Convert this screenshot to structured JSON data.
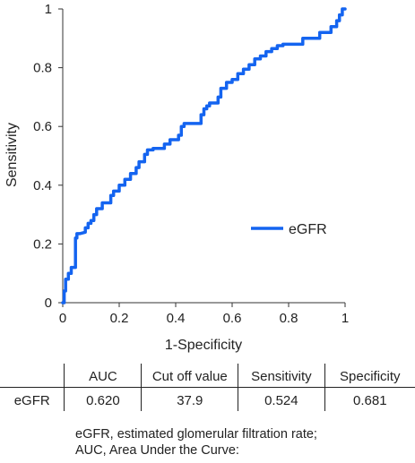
{
  "chart_data": {
    "type": "line",
    "xlabel": "1-Specificity",
    "ylabel": "Sensitivity",
    "xlim": [
      0,
      1
    ],
    "ylim": [
      0,
      1
    ],
    "xticks": [
      0,
      0.2,
      0.4,
      0.6,
      0.8,
      1
    ],
    "xtick_labels": [
      "0",
      "0.2",
      "0.4",
      "0.6",
      "0.8",
      "1"
    ],
    "yticks": [
      0,
      0.2,
      0.4,
      0.6,
      0.8,
      1
    ],
    "ytick_labels": [
      "0",
      "0.2",
      "0.4",
      "0.6",
      "0.8",
      "1"
    ],
    "legend": {
      "position": "right-middle",
      "entries": [
        "eGFR"
      ]
    },
    "grid": false,
    "series": [
      {
        "name": "eGFR",
        "color": "#1464f0",
        "x": [
          0,
          0.005,
          0.005,
          0.01,
          0.01,
          0.02,
          0.02,
          0.03,
          0.03,
          0.045,
          0.045,
          0.05,
          0.05,
          0.06,
          0.08,
          0.08,
          0.09,
          0.09,
          0.1,
          0.1,
          0.11,
          0.11,
          0.12,
          0.12,
          0.14,
          0.14,
          0.17,
          0.17,
          0.18,
          0.18,
          0.2,
          0.2,
          0.22,
          0.22,
          0.24,
          0.24,
          0.26,
          0.26,
          0.27,
          0.27,
          0.29,
          0.29,
          0.3,
          0.3,
          0.32,
          0.32,
          0.36,
          0.36,
          0.38,
          0.38,
          0.41,
          0.41,
          0.42,
          0.42,
          0.43,
          0.43,
          0.49,
          0.49,
          0.5,
          0.5,
          0.51,
          0.51,
          0.52,
          0.52,
          0.55,
          0.55,
          0.56,
          0.56,
          0.58,
          0.58,
          0.6,
          0.6,
          0.62,
          0.62,
          0.64,
          0.64,
          0.66,
          0.66,
          0.68,
          0.68,
          0.7,
          0.7,
          0.72,
          0.72,
          0.74,
          0.74,
          0.76,
          0.76,
          0.78,
          0.78,
          0.85,
          0.85,
          0.91,
          0.91,
          0.95,
          0.95,
          0.97,
          0.97,
          0.98,
          0.98,
          0.99,
          0.99,
          1.0
        ],
        "y": [
          0,
          0,
          0.04,
          0.04,
          0.08,
          0.08,
          0.1,
          0.1,
          0.12,
          0.12,
          0.22,
          0.22,
          0.235,
          0.235,
          0.24,
          0.255,
          0.255,
          0.27,
          0.27,
          0.28,
          0.28,
          0.3,
          0.3,
          0.32,
          0.32,
          0.34,
          0.34,
          0.365,
          0.365,
          0.38,
          0.38,
          0.4,
          0.4,
          0.42,
          0.42,
          0.44,
          0.44,
          0.46,
          0.46,
          0.48,
          0.48,
          0.505,
          0.505,
          0.52,
          0.52,
          0.525,
          0.525,
          0.54,
          0.54,
          0.555,
          0.555,
          0.57,
          0.57,
          0.6,
          0.6,
          0.61,
          0.61,
          0.64,
          0.64,
          0.66,
          0.66,
          0.67,
          0.67,
          0.68,
          0.68,
          0.7,
          0.7,
          0.73,
          0.73,
          0.75,
          0.75,
          0.76,
          0.76,
          0.78,
          0.78,
          0.795,
          0.795,
          0.81,
          0.81,
          0.83,
          0.83,
          0.84,
          0.84,
          0.855,
          0.855,
          0.865,
          0.865,
          0.875,
          0.875,
          0.88,
          0.88,
          0.9,
          0.9,
          0.92,
          0.92,
          0.94,
          0.94,
          0.96,
          0.96,
          0.98,
          0.98,
          1.0,
          1.0
        ]
      }
    ]
  },
  "table": {
    "headers": [
      "",
      "AUC",
      "Cut off value",
      "Sensitivity",
      "Specificity"
    ],
    "rows": [
      [
        "eGFR",
        "0.620",
        "37.9",
        "0.524",
        "0.681"
      ]
    ]
  },
  "footnotes": [
    "eGFR, estimated glomerular filtration rate;",
    "AUC, Area Under the Curve:"
  ]
}
